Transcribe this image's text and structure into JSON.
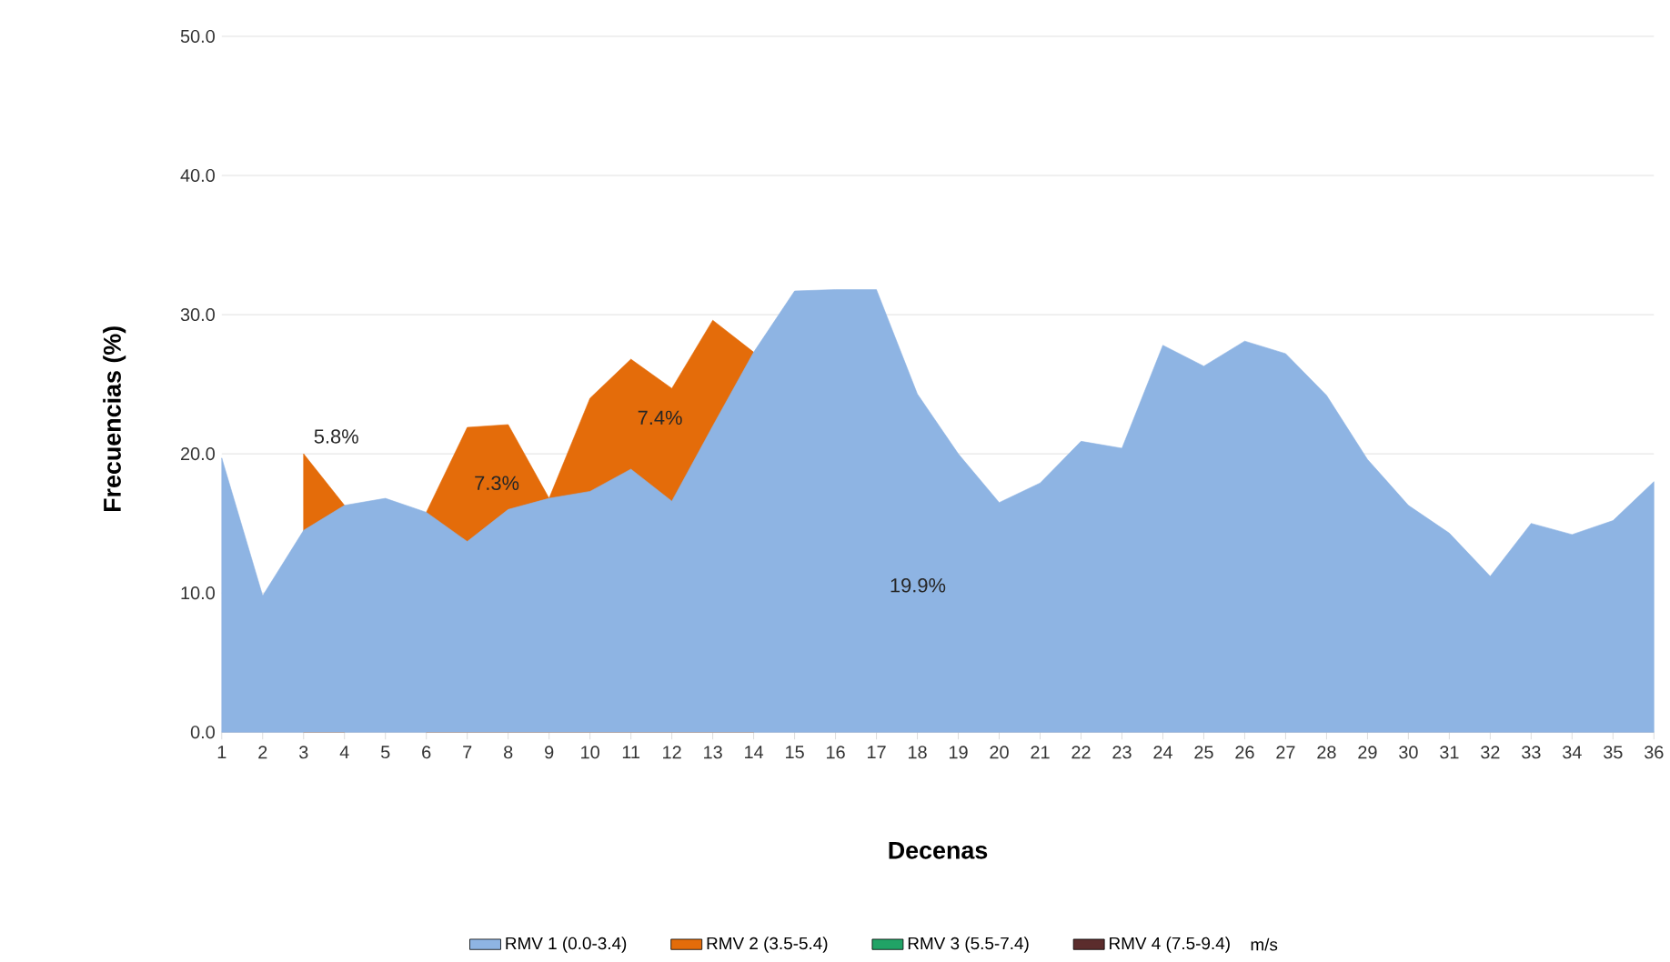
{
  "chart_data": {
    "type": "area",
    "xlabel": "Decenas",
    "ylabel": "Frecuencias  (%)",
    "categories": [
      "1",
      "2",
      "3",
      "4",
      "5",
      "6",
      "7",
      "8",
      "9",
      "10",
      "11",
      "12",
      "13",
      "14",
      "15",
      "16",
      "17",
      "18",
      "19",
      "20",
      "21",
      "22",
      "23",
      "24",
      "25",
      "26",
      "27",
      "28",
      "29",
      "30",
      "31",
      "32",
      "33",
      "34",
      "35",
      "36"
    ],
    "series": [
      {
        "name": "RMV 1 (0.0-3.4)",
        "color": "#8eb4e3",
        "values": [
          19.7,
          9.8,
          14.5,
          16.3,
          16.8,
          15.8,
          13.7,
          16.0,
          16.8,
          17.3,
          18.9,
          16.6,
          22.0,
          27.3,
          31.7,
          31.8,
          31.8,
          24.3,
          20.0,
          16.5,
          17.9,
          20.9,
          20.4,
          27.8,
          26.3,
          28.1,
          27.2,
          24.2,
          19.6,
          16.3,
          14.3,
          11.2,
          15.0,
          14.2,
          15.2,
          18.0
        ]
      },
      {
        "name": "RMV 2 (3.5-5.4)",
        "color": "#e46c0a",
        "values": [
          null,
          null,
          20.0,
          16.3,
          null,
          15.8,
          21.9,
          22.1,
          16.8,
          24.0,
          26.8,
          24.7,
          29.6,
          27.3,
          null,
          null,
          null,
          null,
          null,
          null,
          null,
          null,
          null,
          null,
          null,
          null,
          null,
          null,
          null,
          null,
          null,
          null,
          null,
          null,
          null,
          null
        ]
      },
      {
        "name": "RMV 3 (5.5-7.4)",
        "color": "#21a366",
        "values": [
          null,
          null,
          null,
          null,
          null,
          null,
          null,
          null,
          null,
          null,
          null,
          null,
          null,
          null,
          null,
          null,
          null,
          null,
          null,
          null,
          null,
          null,
          null,
          null,
          null,
          null,
          null,
          null,
          null,
          null,
          null,
          null,
          null,
          null,
          null,
          null
        ]
      },
      {
        "name": "RMV 4 (7.5-9.4)",
        "color": "#5b2c2c",
        "values": [
          null,
          null,
          null,
          null,
          null,
          null,
          null,
          null,
          null,
          null,
          null,
          null,
          null,
          null,
          null,
          null,
          null,
          null,
          null,
          null,
          null,
          null,
          null,
          null,
          null,
          null,
          null,
          null,
          null,
          null,
          null,
          null,
          null,
          null,
          null,
          null
        ]
      }
    ],
    "ylim": [
      0,
      50
    ],
    "yticks": [
      {
        "value": 0,
        "label": "0.0"
      },
      {
        "value": 10,
        "label": "10.0"
      },
      {
        "value": 20,
        "label": "20.0"
      },
      {
        "value": 30,
        "label": "30.0"
      },
      {
        "value": 40,
        "label": "40.0"
      },
      {
        "value": 50,
        "label": "50.0"
      }
    ],
    "grid": "y",
    "legend": "bottom",
    "legend_title": "m/s",
    "annotations": [
      "5.8%",
      "7.3%",
      "7.4%",
      "19.9%"
    ]
  }
}
